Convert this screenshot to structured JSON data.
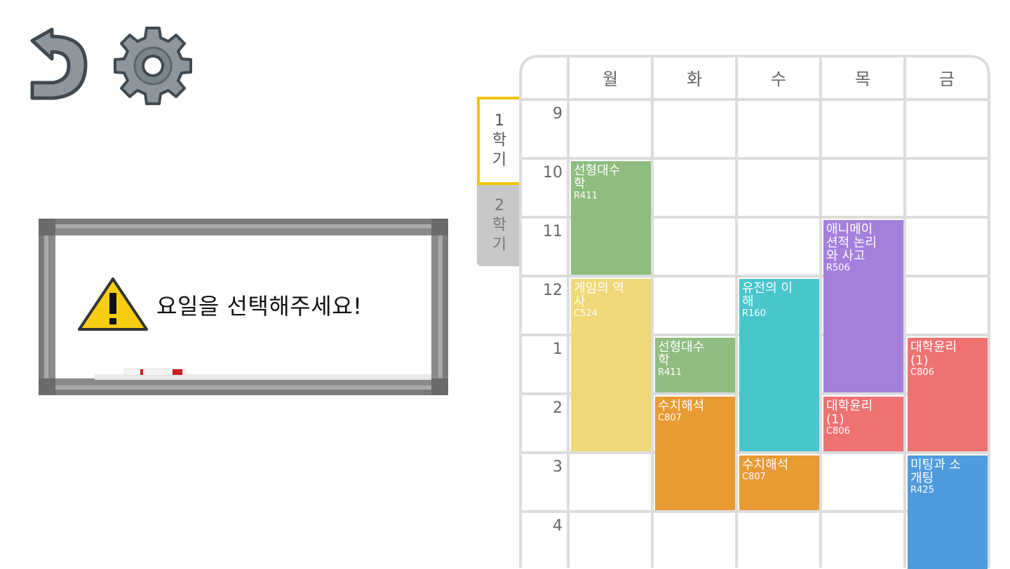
{
  "toolbar": {
    "back_icon": "back-arrow-icon",
    "settings_icon": "gear-icon"
  },
  "warning": {
    "icon": "warning-icon",
    "message": "요일을 선택해주세요!"
  },
  "semesters": [
    {
      "number": "1",
      "chars": [
        "학",
        "기"
      ],
      "selected": true
    },
    {
      "number": "2",
      "chars": [
        "학",
        "기"
      ],
      "selected": false
    }
  ],
  "timetable": {
    "days": [
      "월",
      "화",
      "수",
      "목",
      "금"
    ],
    "hours": [
      "9",
      "10",
      "11",
      "12",
      "1",
      "2",
      "3",
      "4"
    ],
    "courses": [
      {
        "name": "선형대수학",
        "lines": [
          "선형대수",
          "학"
        ],
        "room": "R411",
        "day": 0,
        "start": 1,
        "span": 2,
        "color": "#8fbc7f"
      },
      {
        "name": "게임의 역사",
        "lines": [
          "게임의 역",
          "사"
        ],
        "room": "C524",
        "day": 0,
        "start": 3,
        "span": 3,
        "color": "#eed877"
      },
      {
        "name": "선형대수학",
        "lines": [
          "선형대수",
          "학"
        ],
        "room": "R411",
        "day": 1,
        "start": 4,
        "span": 1,
        "color": "#8fbc7f"
      },
      {
        "name": "수치해석",
        "lines": [
          "수치해석"
        ],
        "room": "C807",
        "day": 1,
        "start": 5,
        "span": 2,
        "color": "#e89a33"
      },
      {
        "name": "유전의 이해",
        "lines": [
          "유전의 이",
          "해"
        ],
        "room": "R160",
        "day": 2,
        "start": 3,
        "span": 3,
        "color": "#48c6cc"
      },
      {
        "name": "수치해석",
        "lines": [
          "수치해석"
        ],
        "room": "C807",
        "day": 2,
        "start": 6,
        "span": 1,
        "color": "#e89a33"
      },
      {
        "name": "애니메이션적 논리와 사고",
        "lines": [
          "애니메이",
          "션적 논리",
          "와 사고"
        ],
        "room": "R506",
        "day": 3,
        "start": 2,
        "span": 3,
        "color": "#a57fdc"
      },
      {
        "name": "대학윤리(1)",
        "lines": [
          "대학윤리",
          "(1)"
        ],
        "room": "C806",
        "day": 3,
        "start": 5,
        "span": 1,
        "color": "#ee7272"
      },
      {
        "name": "대학윤리(1)",
        "lines": [
          "대학윤리",
          "(1)"
        ],
        "room": "C806",
        "day": 4,
        "start": 4,
        "span": 2,
        "color": "#ee7272"
      },
      {
        "name": "미팅과 소개팅",
        "lines": [
          "미팅과 소",
          "개팅"
        ],
        "room": "R425",
        "day": 4,
        "start": 6,
        "span": 2,
        "color": "#4f9be0"
      }
    ]
  }
}
